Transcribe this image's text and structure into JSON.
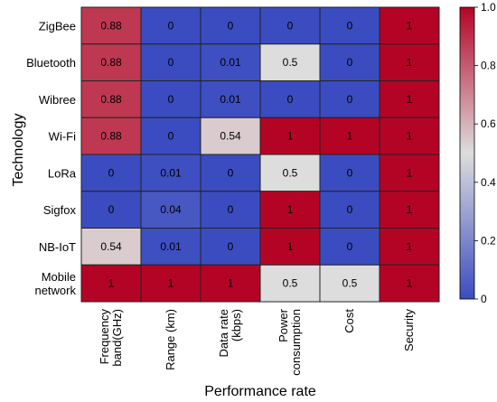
{
  "chart_data": {
    "type": "heatmap",
    "xlabel": "Performance rate",
    "ylabel": "Technology",
    "columns": [
      [
        "Frequency",
        "band(GHz)"
      ],
      [
        "Range (km)"
      ],
      [
        "Data rate",
        "(kbps)"
      ],
      [
        "Power",
        "consumption"
      ],
      [
        "Cost"
      ],
      [
        "Security"
      ]
    ],
    "rows": [
      [
        "ZigBee"
      ],
      [
        "Bluetooth"
      ],
      [
        "Wibree"
      ],
      [
        "Wi-Fi"
      ],
      [
        "LoRa"
      ],
      [
        "Sigfox"
      ],
      [
        "NB-IoT"
      ],
      [
        "Mobile",
        "network"
      ]
    ],
    "values": [
      [
        0.88,
        0,
        0,
        0,
        0,
        1
      ],
      [
        0.88,
        0,
        0.01,
        0.5,
        0,
        1
      ],
      [
        0.88,
        0,
        0.01,
        0,
        0,
        1
      ],
      [
        0.88,
        0,
        0.54,
        1,
        1,
        1
      ],
      [
        0,
        0.01,
        0,
        0.5,
        0,
        1
      ],
      [
        0,
        0.04,
        0,
        1,
        0,
        1
      ],
      [
        0.54,
        0.01,
        0,
        1,
        0,
        1
      ],
      [
        1,
        1,
        1,
        0.5,
        0.5,
        1
      ]
    ],
    "colorbar": {
      "range": [
        0,
        1
      ],
      "ticks": [
        0,
        0.2,
        0.4,
        0.6,
        0.8,
        1.0
      ],
      "tick_labels": [
        "0",
        "0.2",
        "0.4",
        "0.6",
        "0.8",
        "1.0"
      ],
      "colormap": "coolwarm",
      "colormap_stops": [
        "#3b4cc0",
        "#dddddd",
        "#b40426"
      ]
    },
    "grid_line_color": "#222222"
  }
}
